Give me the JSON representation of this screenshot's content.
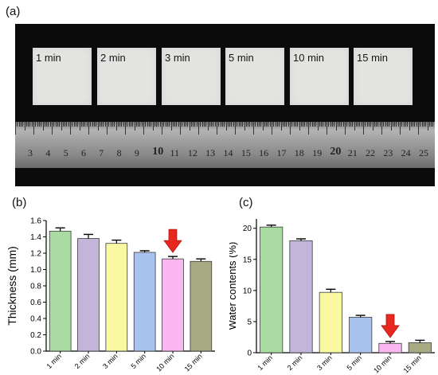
{
  "panels": {
    "a": "(a)",
    "b": "(b)",
    "c": "(c)"
  },
  "photo": {
    "samples": [
      "1 min",
      "2 min",
      "3 min",
      "5 min",
      "10 min",
      "15 min"
    ],
    "ruler_numbers": [
      "3",
      "4",
      "5",
      "6",
      "7",
      "8",
      "9",
      "10",
      "11",
      "12",
      "13",
      "14",
      "15",
      "16",
      "17",
      "18",
      "19",
      "20",
      "21",
      "22",
      "23",
      "24",
      "25"
    ]
  },
  "chart_data": [
    {
      "type": "bar",
      "categories": [
        "1 min",
        "2 min",
        "3 min",
        "5 min",
        "10 min",
        "15 min"
      ],
      "values": [
        1.47,
        1.38,
        1.32,
        1.21,
        1.13,
        1.1
      ],
      "errors": [
        0.04,
        0.05,
        0.04,
        0.02,
        0.03,
        0.03
      ],
      "colors": [
        "#a9dba3",
        "#c2b5d9",
        "#f9f9a4",
        "#a9c3f0",
        "#fbb8f0",
        "#a8aa84"
      ],
      "ylabel": "Thickness (mm)",
      "ylim": [
        0,
        1.6
      ],
      "yticks": [
        "0.0",
        "0.2",
        "0.4",
        "0.6",
        "0.8",
        "1.0",
        "1.2",
        "1.4",
        "1.6"
      ],
      "highlight_index": 4,
      "highlight_color": "#e8271e"
    },
    {
      "type": "bar",
      "categories": [
        "1 min",
        "2 min",
        "3 min",
        "5 min",
        "10 min",
        "15 min"
      ],
      "values": [
        20.2,
        18.0,
        9.7,
        5.7,
        1.5,
        1.6
      ],
      "errors": [
        0.3,
        0.3,
        0.5,
        0.3,
        0.3,
        0.4
      ],
      "colors": [
        "#a9dba3",
        "#c2b5d9",
        "#f9f9a4",
        "#a9c3f0",
        "#fbb8f0",
        "#a8aa84"
      ],
      "ylabel": "Water contents (%)",
      "ylim": [
        0,
        21.5
      ],
      "yticks": [
        "0",
        "5",
        "10",
        "15",
        "20"
      ],
      "highlight_index": 4,
      "highlight_color": "#e8271e"
    }
  ]
}
